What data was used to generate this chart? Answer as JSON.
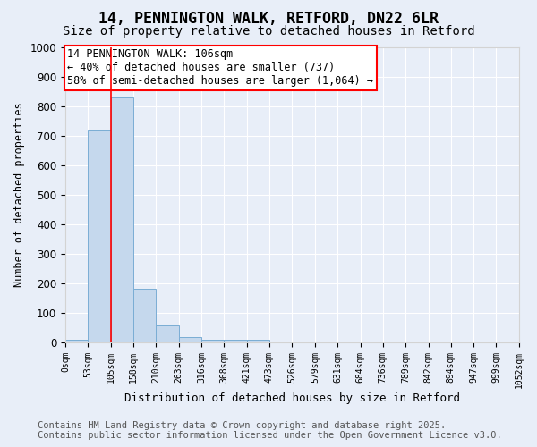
{
  "title": "14, PENNINGTON WALK, RETFORD, DN22 6LR",
  "subtitle": "Size of property relative to detached houses in Retford",
  "xlabel": "Distribution of detached houses by size in Retford",
  "ylabel": "Number of detached properties",
  "bin_edges": [
    0,
    53,
    105,
    158,
    210,
    263,
    316,
    368,
    421,
    473,
    526,
    579,
    631,
    684,
    736,
    789,
    842,
    894,
    947,
    999,
    1052
  ],
  "bin_labels": [
    "0sqm",
    "53sqm",
    "105sqm",
    "158sqm",
    "210sqm",
    "263sqm",
    "316sqm",
    "368sqm",
    "421sqm",
    "473sqm",
    "526sqm",
    "579sqm",
    "631sqm",
    "684sqm",
    "736sqm",
    "789sqm",
    "842sqm",
    "894sqm",
    "947sqm",
    "999sqm",
    "1052sqm"
  ],
  "counts": [
    10,
    720,
    830,
    183,
    57,
    18,
    8,
    8,
    10,
    0,
    0,
    0,
    0,
    0,
    0,
    0,
    0,
    0,
    0,
    0
  ],
  "bar_color": "#c5d8ed",
  "bar_edge_color": "#7aadd4",
  "red_line_x": 106,
  "ylim": [
    0,
    1000
  ],
  "yticks": [
    0,
    100,
    200,
    300,
    400,
    500,
    600,
    700,
    800,
    900,
    1000
  ],
  "annotation_title": "14 PENNINGTON WALK: 106sqm",
  "annotation_line2": "← 40% of detached houses are smaller (737)",
  "annotation_line3": "58% of semi-detached houses are larger (1,064) →",
  "footer_line1": "Contains HM Land Registry data © Crown copyright and database right 2025.",
  "footer_line2": "Contains public sector information licensed under the Open Government Licence v3.0.",
  "background_color": "#e8eef8",
  "plot_background": "#e8eef8",
  "grid_color": "#ffffff",
  "title_fontsize": 12,
  "subtitle_fontsize": 10,
  "annotation_fontsize": 8.5,
  "footer_fontsize": 7.5
}
